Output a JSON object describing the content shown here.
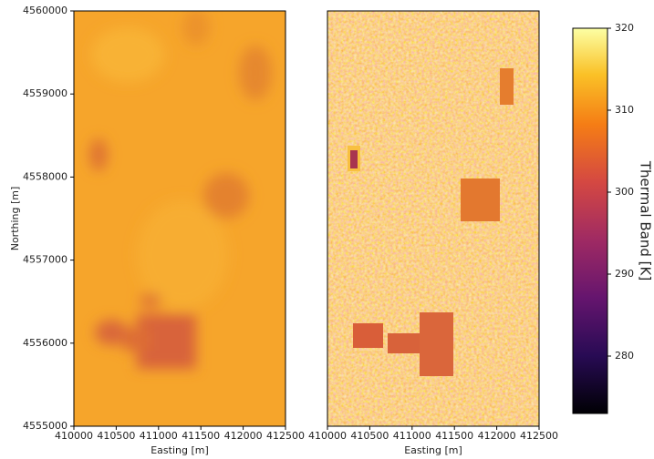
{
  "chart_data": [
    {
      "type": "heatmap",
      "xlabel": "Easting [m]",
      "ylabel": "Northing [m]",
      "xlim": [
        410000,
        412500
      ],
      "xticks": [
        410000,
        410500,
        411000,
        411500,
        412000,
        412500
      ],
      "ylim": [
        4555000,
        4560000
      ],
      "yticks": [
        4555000,
        4556000,
        4557000,
        4558000,
        4559000,
        4560000
      ]
    },
    {
      "type": "heatmap",
      "xlabel": "Easting [m]",
      "xlim": [
        410000,
        412500
      ],
      "xticks": [
        410000,
        410500,
        411000,
        411500,
        412000,
        412500
      ],
      "ylim": [
        4555000,
        4560000
      ]
    },
    {
      "type": "colorbar",
      "label": "Thermal Band  [K]",
      "ylim": [
        273,
        320
      ],
      "yticks": [
        280,
        290,
        300,
        310,
        320
      ]
    }
  ]
}
